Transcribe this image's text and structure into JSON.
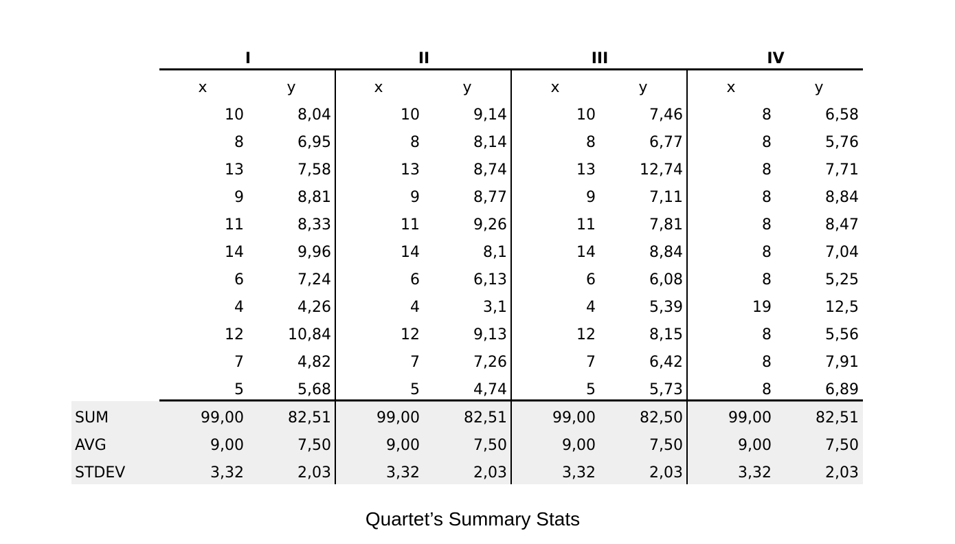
{
  "quartet_table": {
    "groups": [
      "I",
      "II",
      "III",
      "IV"
    ],
    "subheaders": [
      "x",
      "y"
    ],
    "rows": [
      [
        "10",
        "8,04",
        "10",
        "9,14",
        "10",
        "7,46",
        "8",
        "6,58"
      ],
      [
        "8",
        "6,95",
        "8",
        "8,14",
        "8",
        "6,77",
        "8",
        "5,76"
      ],
      [
        "13",
        "7,58",
        "13",
        "8,74",
        "13",
        "12,74",
        "8",
        "7,71"
      ],
      [
        "9",
        "8,81",
        "9",
        "8,77",
        "9",
        "7,11",
        "8",
        "8,84"
      ],
      [
        "11",
        "8,33",
        "11",
        "9,26",
        "11",
        "7,81",
        "8",
        "8,47"
      ],
      [
        "14",
        "9,96",
        "14",
        "8,1",
        "14",
        "8,84",
        "8",
        "7,04"
      ],
      [
        "6",
        "7,24",
        "6",
        "6,13",
        "6",
        "6,08",
        "8",
        "5,25"
      ],
      [
        "4",
        "4,26",
        "4",
        "3,1",
        "4",
        "5,39",
        "19",
        "12,5"
      ],
      [
        "12",
        "10,84",
        "12",
        "9,13",
        "12",
        "8,15",
        "8",
        "5,56"
      ],
      [
        "7",
        "4,82",
        "7",
        "7,26",
        "7",
        "6,42",
        "8",
        "7,91"
      ],
      [
        "5",
        "5,68",
        "5",
        "4,74",
        "5",
        "5,73",
        "8",
        "6,89"
      ]
    ],
    "stats": [
      {
        "label": "SUM",
        "values": [
          "99,00",
          "82,51",
          "99,00",
          "82,51",
          "99,00",
          "82,50",
          "99,00",
          "82,51"
        ]
      },
      {
        "label": "AVG",
        "values": [
          "9,00",
          "7,50",
          "9,00",
          "7,50",
          "9,00",
          "7,50",
          "9,00",
          "7,50"
        ]
      },
      {
        "label": "STDEV",
        "values": [
          "3,32",
          "2,03",
          "3,32",
          "2,03",
          "3,32",
          "2,03",
          "3,32",
          "2,03"
        ]
      }
    ],
    "stats_background": "#efefef",
    "rule_color": "#000000"
  },
  "caption": "Quartet’s Summary Stats"
}
